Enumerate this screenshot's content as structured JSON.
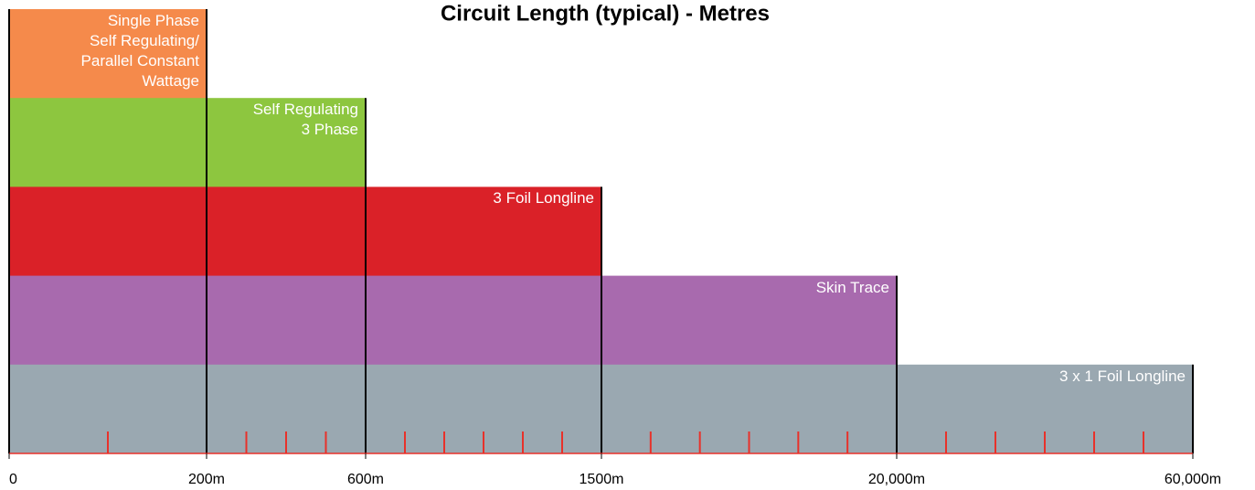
{
  "chart_data": {
    "type": "bar",
    "orientation": "horizontal",
    "title": "Circuit Length (typical) - Metres",
    "categories": [
      "Single Phase\nSelf Regulating/\nParallel Constant\nWattage",
      "Self Regulating\n3 Phase",
      "3 Foil Longline",
      "Skin Trace",
      "3 x 1 Foil Longline"
    ],
    "values": [
      200,
      600,
      1500,
      20000,
      60000
    ],
    "colors": [
      "#f58a4b",
      "#8dc63f",
      "#da2128",
      "#a86aae",
      "#9aa8b1"
    ],
    "xlim": [
      0,
      60000
    ],
    "xticks": [
      0,
      {
        "value": 200,
        "label": "200m"
      },
      {
        "value": 600,
        "label": "600m"
      },
      {
        "value": 1500,
        "label": "1500m"
      },
      {
        "value": 20000,
        "label": "20,000m"
      },
      {
        "value": 60000,
        "label": "60,000m"
      }
    ],
    "minor_xticks": [
      100,
      300,
      400,
      500,
      750,
      900,
      1050,
      1200,
      1350,
      4583,
      7667,
      10750,
      13833,
      16917,
      26667,
      33333,
      40000,
      46667,
      53333
    ],
    "minor_tick_color": "#e8312a",
    "baseline_color": "#e8312a"
  }
}
